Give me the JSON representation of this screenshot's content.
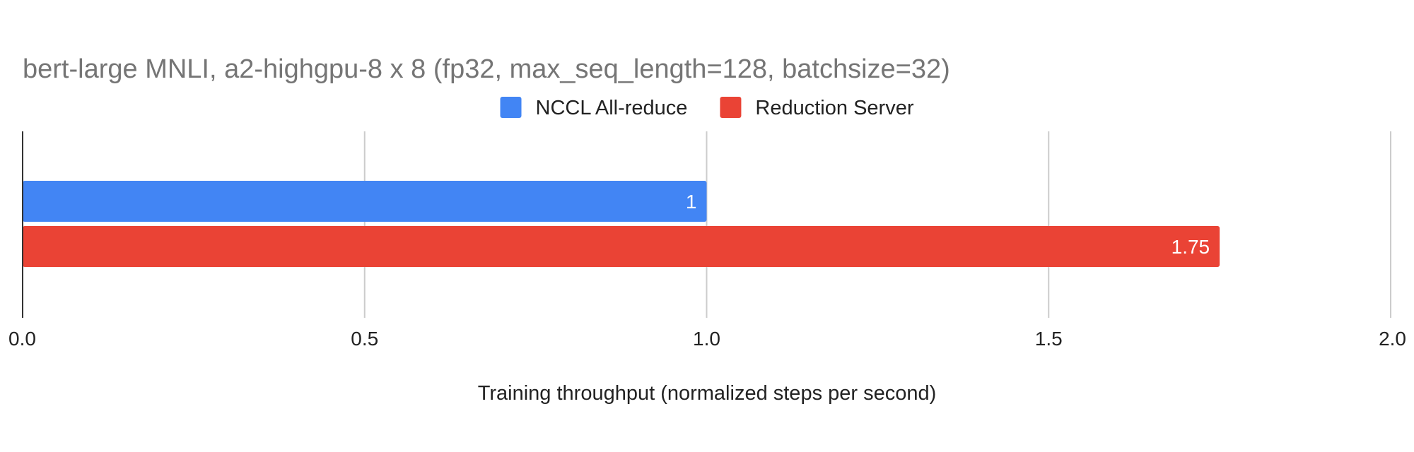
{
  "chart_data": {
    "type": "bar",
    "orientation": "horizontal",
    "title": "bert-large MNLI, a2-highgpu-8 x 8 (fp32, max_seq_length=128, batchsize=32)",
    "xlabel": "Training throughput (normalized steps per second)",
    "ylabel": "",
    "xlim": [
      0,
      2
    ],
    "xticks": [
      "0.0",
      "0.5",
      "1.0",
      "1.5",
      "2.0"
    ],
    "grid": true,
    "legend_position": "top",
    "series": [
      {
        "name": "NCCL All-reduce",
        "value": 1,
        "label": "1",
        "color": "#4285f4"
      },
      {
        "name": "Reduction Server",
        "value": 1.75,
        "label": "1.75",
        "color": "#ea4335"
      }
    ]
  }
}
